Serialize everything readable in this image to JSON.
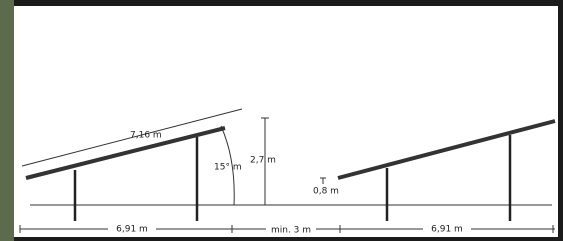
{
  "labels": {
    "panel_length": "7,16 m",
    "angle": "15° m",
    "height": "2,7 m",
    "clearance": "0,8 m",
    "row_depth_left": "6,91 m",
    "row_spacing": "min. 3 m",
    "row_depth_right": "6,91 m"
  }
}
